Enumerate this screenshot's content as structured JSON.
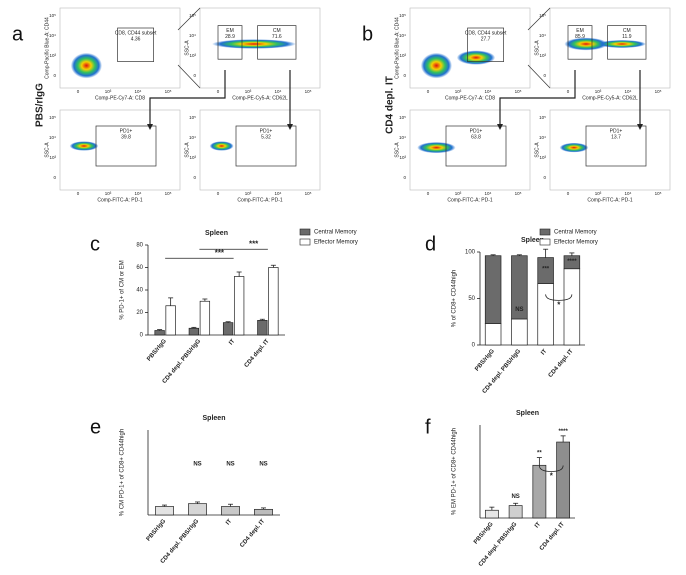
{
  "flow_panels": [
    {
      "letter": "a",
      "condition": "PBS/rIgG",
      "plots": [
        {
          "x_label": "Comp-PE-Cy7-A: CD8",
          "y_label": "Comp-Pacific Blue-A: CD44",
          "gates": [
            {
              "label": "CD8, CD44 subset",
              "value": 4.36
            }
          ]
        },
        {
          "x_label": "Comp-PE-Cy5-A: CD62L",
          "y_label": "SSC-A",
          "gates": [
            {
              "label": "EM",
              "value": 28.9
            },
            {
              "label": "CM",
              "value": 71.6
            }
          ]
        },
        {
          "x_label": "Comp-FITC-A: PD-1",
          "y_label": "SSC-A",
          "gates": [
            {
              "label": "PD1+",
              "value": 39.8
            }
          ]
        },
        {
          "x_label": "Comp-FITC-A: PD-1",
          "y_label": "SSC-A",
          "gates": [
            {
              "label": "PD1+",
              "value": 5.32
            }
          ]
        }
      ]
    },
    {
      "letter": "b",
      "condition": "CD4 depl. IT",
      "plots": [
        {
          "x_label": "Comp-PE-Cy7-A: CD8",
          "y_label": "Comp-Pacific Blue-A: CD44",
          "gates": [
            {
              "label": "CD8, CD44 subset",
              "value": 27.7
            }
          ]
        },
        {
          "x_label": "Comp-PE-Cy5-A: CD62L",
          "y_label": "SSC-A",
          "gates": [
            {
              "label": "EM",
              "value": 85.9
            },
            {
              "label": "CM",
              "value": 11.9
            }
          ]
        },
        {
          "x_label": "Comp-FITC-A: PD-1",
          "y_label": "SSC-A",
          "gates": [
            {
              "label": "PD1+",
              "value": 63.8
            }
          ]
        },
        {
          "x_label": "Comp-FITC-A: PD-1",
          "y_label": "SSC-A",
          "gates": [
            {
              "label": "PD1+",
              "value": 13.7
            }
          ]
        }
      ]
    }
  ],
  "flow_axis_ticks": [
    "0",
    "10³",
    "10⁴",
    "10⁵"
  ],
  "chart_data": [
    {
      "type": "bar",
      "letter": "c",
      "title": "Spleen",
      "y_label": "% PD-1+ of CM or EM",
      "categories": [
        "PBS/rIgG",
        "CD4 depl. PBS/rIgG",
        "IT",
        "CD4 depl. IT"
      ],
      "series": [
        {
          "name": "Central Memory",
          "color": "#6b6b6b",
          "values": [
            4,
            6,
            11,
            13
          ],
          "errors": [
            0.8,
            0.8,
            0.8,
            1
          ]
        },
        {
          "name": "Effector Memory",
          "color": "#ffffff",
          "values": [
            26,
            30,
            52,
            60
          ],
          "errors": [
            7,
            2,
            4,
            2
          ]
        }
      ],
      "ylim": [
        0,
        80
      ],
      "yticks": [
        0,
        20,
        40,
        60,
        80
      ],
      "legend": "upper right",
      "annotations": [
        "***",
        "***"
      ]
    },
    {
      "type": "stacked_bar",
      "letter": "d",
      "title": "Spleen",
      "y_label": "% of CD8+ CD44high",
      "categories": [
        "PBS/rIgG",
        "CD4 depl. PBS/rIgG",
        "IT",
        "CD4 depl. IT"
      ],
      "series": [
        {
          "name": "Central Memory",
          "color": "#6b6b6b",
          "values": [
            73,
            68,
            28,
            14
          ],
          "errors": [
            1,
            1,
            9,
            3
          ]
        },
        {
          "name": "Effector Memory",
          "color": "#ffffff",
          "values": [
            23,
            28,
            66,
            82
          ],
          "errors": [
            1,
            1,
            8,
            3
          ]
        }
      ],
      "ylim": [
        0,
        100
      ],
      "yticks": [
        0,
        50,
        100
      ],
      "legend": "upper right",
      "annotations": [
        "NS",
        "***",
        "****",
        "*"
      ]
    },
    {
      "type": "bar",
      "letter": "e",
      "title": "Spleen",
      "y_label": "% CM PD-1+ of CD8+ CD44high",
      "categories": [
        "PBS/rIgG",
        "CD4 depl. PBS/rIgG",
        "IT",
        "CD4 depl. IT"
      ],
      "values": [
        3,
        4,
        3,
        2
      ],
      "errors": [
        0.5,
        0.6,
        0.8,
        0.5
      ],
      "colors": [
        "#e3e3e3",
        "#d6d6d6",
        "#c8c8c8",
        "#bcbcbc"
      ],
      "ylim": [
        0,
        30
      ],
      "annotations": [
        "NS",
        "NS",
        "NS"
      ]
    },
    {
      "type": "bar",
      "letter": "f",
      "title": "Spleen",
      "y_label": "% EM PD-1+ of CD8+ CD44high",
      "categories": [
        "PBS/rIgG",
        "CD4 depl. PBS/rIgG",
        "IT",
        "CD4 depl. IT"
      ],
      "values": [
        5,
        8,
        34,
        49
      ],
      "errors": [
        2,
        1.5,
        5,
        4
      ],
      "colors": [
        "#e6e6e6",
        "#cfcfcf",
        "#a8a8a8",
        "#8e8e8e"
      ],
      "ylim": [
        0,
        60
      ],
      "annotations": [
        "NS",
        "**",
        "****",
        "*"
      ]
    }
  ]
}
